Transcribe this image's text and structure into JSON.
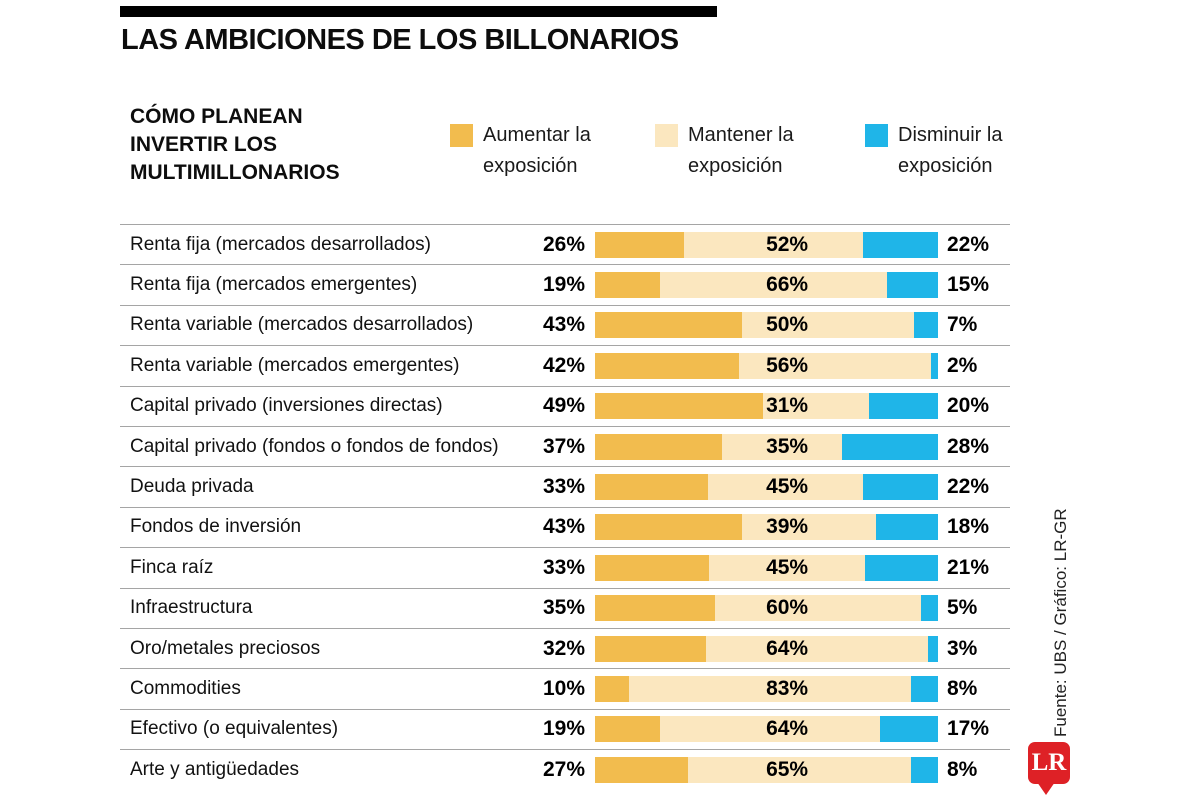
{
  "title": "LAS AMBICIONES DE LOS BILLONARIOS",
  "subtitle_lines": [
    "CÓMO PLANEAN",
    "INVERTIR LOS",
    "MULTIMILLONARIOS"
  ],
  "legend": [
    {
      "line1": "Aumentar la",
      "line2": "exposición",
      "color": "#F2BC4E"
    },
    {
      "line1": "Mantener la",
      "line2": "exposición",
      "color": "#FBE7BF"
    },
    {
      "line1": "Disminuir la",
      "line2": "exposición",
      "color": "#1FB5E8"
    }
  ],
  "source": "Fuente: UBS / Gráfico: LR-GR",
  "logo_text": "LR",
  "colors": {
    "increase": "#F2BC4E",
    "maintain": "#FBE7BF",
    "decrease": "#1FB5E8",
    "logo_red": "#DE2126",
    "rule_black": "#000000",
    "divider_gray": "#A5A5A5"
  },
  "chart_data": {
    "type": "bar",
    "orientation": "horizontal-stacked",
    "unit": "%",
    "xlim": [
      0,
      100
    ],
    "legend_position": "top",
    "grid": false,
    "categories": [
      "Renta fija (mercados desarrollados)",
      "Renta fija (mercados emergentes)",
      "Renta variable (mercados desarrollados)",
      "Renta variable (mercados emergentes)",
      "Capital privado (inversiones directas)",
      "Capital privado (fondos o fondos de fondos)",
      "Deuda privada",
      "Fondos de inversión",
      "Finca raíz",
      "Infraestructura",
      "Oro/metales preciosos",
      "Commodities",
      "Efectivo (o equivalentes)",
      "Arte y antigüedades"
    ],
    "series": [
      {
        "name": "Aumentar la exposición",
        "color": "#F2BC4E",
        "values": [
          26,
          19,
          43,
          42,
          49,
          37,
          33,
          43,
          33,
          35,
          32,
          10,
          19,
          27
        ]
      },
      {
        "name": "Mantener la exposición",
        "color": "#FBE7BF",
        "values": [
          52,
          66,
          50,
          56,
          31,
          35,
          45,
          39,
          45,
          60,
          64,
          83,
          64,
          65
        ]
      },
      {
        "name": "Disminuir la exposición",
        "color": "#1FB5E8",
        "values": [
          22,
          15,
          7,
          2,
          20,
          28,
          22,
          18,
          21,
          5,
          3,
          8,
          17,
          8
        ]
      }
    ]
  }
}
